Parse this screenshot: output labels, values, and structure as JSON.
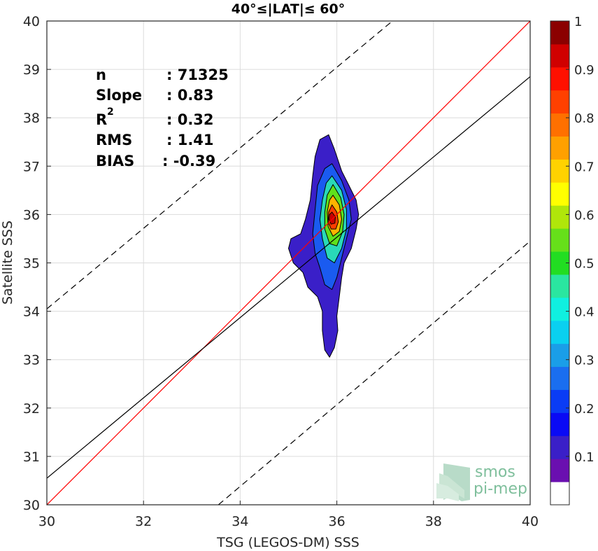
{
  "chart_data": {
    "type": "contour-density-scatter",
    "title": "40°≤|LAT|≤ 60°",
    "xlabel": "TSG (LEGOS-DM) SSS",
    "ylabel": "Satellite SSS",
    "xlim": [
      30,
      40
    ],
    "ylim": [
      30,
      40
    ],
    "xticks": [
      "30",
      "32",
      "34",
      "36",
      "38",
      "40"
    ],
    "yticks": [
      "30",
      "31",
      "32",
      "33",
      "34",
      "35",
      "36",
      "37",
      "38",
      "39",
      "40"
    ],
    "grid": true,
    "stats": {
      "n": {
        "label": "n",
        "value": ": 71325"
      },
      "slope": {
        "label": "Slope",
        "value": ": 0.83"
      },
      "r2": {
        "label": "R",
        "sup": "2",
        "value": ": 0.32"
      },
      "rms": {
        "label": "RMS",
        "value": ": 1.41"
      },
      "bias": {
        "label": "BIAS",
        "value": ": -0.39"
      }
    },
    "lines": {
      "identity": {
        "color": "#ff0000",
        "points": [
          [
            30,
            30
          ],
          [
            40,
            40
          ]
        ]
      },
      "regression": {
        "color": "#000000",
        "points": [
          [
            30,
            30.55
          ],
          [
            40,
            38.85
          ]
        ]
      },
      "upper_bound": {
        "color": "#000000",
        "dash": true,
        "points": [
          [
            30,
            34.05
          ],
          [
            37.15,
            40
          ]
        ]
      },
      "lower_bound": {
        "color": "#000000",
        "dash": true,
        "points": [
          [
            33.55,
            30
          ],
          [
            40,
            35.45
          ]
        ]
      }
    },
    "density_center": {
      "x": 35.88,
      "y": 35.92
    },
    "contours": [
      {
        "level": 0.05,
        "color": "#3a1fc8",
        "points": [
          [
            35.83,
            37.65
          ],
          [
            35.95,
            37.35
          ],
          [
            36.1,
            36.9
          ],
          [
            36.25,
            36.6
          ],
          [
            36.4,
            36.3
          ],
          [
            36.45,
            36.0
          ],
          [
            36.4,
            35.7
          ],
          [
            36.3,
            35.3
          ],
          [
            36.15,
            35.0
          ],
          [
            36.1,
            34.7
          ],
          [
            36.05,
            34.3
          ],
          [
            36.0,
            33.9
          ],
          [
            36.02,
            33.6
          ],
          [
            35.95,
            33.25
          ],
          [
            35.85,
            33.05
          ],
          [
            35.75,
            33.2
          ],
          [
            35.7,
            33.6
          ],
          [
            35.7,
            34.0
          ],
          [
            35.6,
            34.3
          ],
          [
            35.4,
            34.5
          ],
          [
            35.3,
            34.8
          ],
          [
            35.1,
            35.0
          ],
          [
            35.0,
            35.3
          ],
          [
            35.05,
            35.5
          ],
          [
            35.25,
            35.6
          ],
          [
            35.35,
            35.9
          ],
          [
            35.45,
            36.3
          ],
          [
            35.5,
            36.8
          ],
          [
            35.55,
            37.2
          ],
          [
            35.65,
            37.55
          ]
        ]
      },
      {
        "level": 0.2,
        "color": "#1a5bf0",
        "points": [
          [
            35.9,
            37.05
          ],
          [
            36.1,
            36.7
          ],
          [
            36.25,
            36.3
          ],
          [
            36.3,
            35.9
          ],
          [
            36.2,
            35.5
          ],
          [
            36.1,
            35.1
          ],
          [
            36.0,
            34.7
          ],
          [
            35.9,
            34.45
          ],
          [
            35.75,
            34.55
          ],
          [
            35.65,
            34.9
          ],
          [
            35.55,
            35.2
          ],
          [
            35.5,
            35.6
          ],
          [
            35.55,
            36.1
          ],
          [
            35.6,
            36.6
          ],
          [
            35.75,
            36.95
          ]
        ]
      },
      {
        "level": 0.4,
        "color": "#29d9b8",
        "points": [
          [
            35.9,
            36.8
          ],
          [
            36.1,
            36.5
          ],
          [
            36.2,
            36.1
          ],
          [
            36.2,
            35.7
          ],
          [
            36.1,
            35.3
          ],
          [
            35.95,
            35.0
          ],
          [
            35.8,
            35.1
          ],
          [
            35.7,
            35.5
          ],
          [
            35.65,
            35.9
          ],
          [
            35.7,
            36.3
          ],
          [
            35.78,
            36.65
          ]
        ]
      },
      {
        "level": 0.55,
        "color": "#5fe11c",
        "points": [
          [
            35.92,
            36.62
          ],
          [
            36.08,
            36.35
          ],
          [
            36.15,
            36.0
          ],
          [
            36.12,
            35.65
          ],
          [
            36.0,
            35.35
          ],
          [
            35.85,
            35.4
          ],
          [
            35.75,
            35.7
          ],
          [
            35.75,
            36.05
          ],
          [
            35.8,
            36.4
          ]
        ]
      },
      {
        "level": 0.7,
        "color": "#ffb300",
        "points": [
          [
            35.92,
            36.4
          ],
          [
            36.05,
            36.2
          ],
          [
            36.1,
            35.9
          ],
          [
            36.05,
            35.65
          ],
          [
            35.92,
            35.55
          ],
          [
            35.82,
            35.75
          ],
          [
            35.8,
            36.05
          ],
          [
            35.85,
            36.3
          ]
        ]
      },
      {
        "level": 0.85,
        "color": "#ff3c00",
        "points": [
          [
            35.9,
            36.2
          ],
          [
            36.0,
            36.05
          ],
          [
            36.03,
            35.85
          ],
          [
            35.98,
            35.7
          ],
          [
            35.88,
            35.7
          ],
          [
            35.82,
            35.85
          ],
          [
            35.83,
            36.05
          ]
        ]
      },
      {
        "level": 0.95,
        "color": "#c80000",
        "points": [
          [
            35.9,
            36.05
          ],
          [
            35.97,
            35.95
          ],
          [
            35.96,
            35.82
          ],
          [
            35.88,
            35.8
          ],
          [
            35.84,
            35.9
          ],
          [
            35.85,
            36.0
          ]
        ]
      }
    ],
    "colorbar": {
      "ticks": [
        "0.1",
        "0.2",
        "0.3",
        "0.4",
        "0.5",
        "0.6",
        "0.7",
        "0.8",
        "0.9",
        "1"
      ],
      "tick_values": [
        0.1,
        0.2,
        0.3,
        0.4,
        0.5,
        0.6,
        0.7,
        0.8,
        0.9,
        1.0
      ],
      "colors": [
        "#ffffff",
        "#6a0fb0",
        "#3a1fc8",
        "#0a0af5",
        "#0a3cf5",
        "#1a6ef0",
        "#1a9ee8",
        "#0ad0f0",
        "#10f0e0",
        "#2ae6a0",
        "#22dd22",
        "#66e01a",
        "#b0e60a",
        "#ffff00",
        "#ffd200",
        "#ffa000",
        "#ff7000",
        "#ff4000",
        "#ff1000",
        "#d00000",
        "#8b0000"
      ]
    }
  },
  "logo": {
    "line1": "smos",
    "line2": "pi-mep"
  }
}
